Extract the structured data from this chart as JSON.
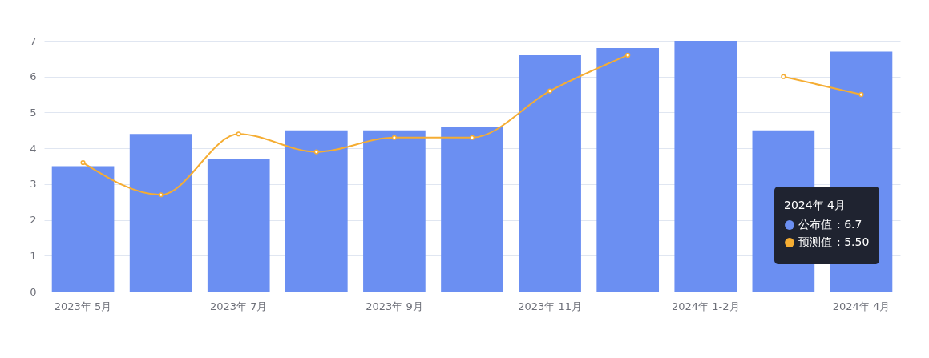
{
  "chart_data": {
    "type": "bar",
    "categories": [
      "2023年 5月",
      null,
      "2023年 7月",
      null,
      "2023年 9月",
      null,
      "2023年 11月",
      null,
      "2024年 1-2月",
      null,
      "2024年 4月"
    ],
    "series": [
      {
        "name": "公布值",
        "color": "#6b8ff2",
        "values": [
          3.5,
          4.4,
          3.7,
          4.5,
          4.5,
          4.6,
          6.6,
          6.8,
          7.0,
          4.5,
          6.7
        ]
      },
      {
        "name": "预测值",
        "type": "line",
        "color": "#f5ad33",
        "values": [
          3.6,
          2.7,
          4.4,
          3.9,
          4.3,
          4.3,
          5.6,
          6.6,
          null,
          6.0,
          5.5
        ]
      }
    ],
    "ylim": [
      0,
      7
    ],
    "yticks": [
      0,
      1,
      2,
      3,
      4,
      5,
      6,
      7
    ],
    "grid": "y",
    "marker": "circle",
    "line_style": "solid",
    "legend": "bottom right",
    "legend_title": "2024年 4月",
    "annotations": [
      ": 6.7",
      ": 5.50"
    ]
  }
}
